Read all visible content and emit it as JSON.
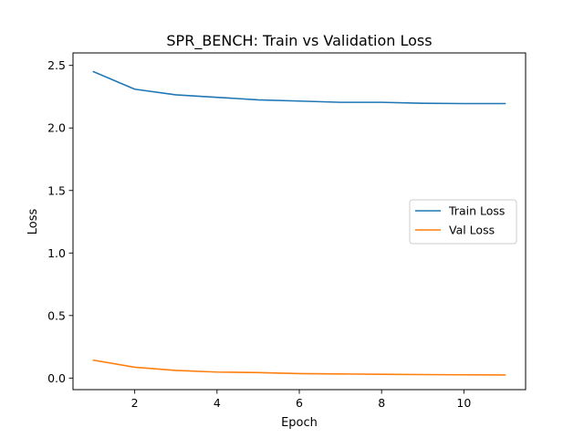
{
  "chart_data": {
    "type": "line",
    "title": "SPR_BENCH: Train vs Validation Loss",
    "xlabel": "Epoch",
    "ylabel": "Loss",
    "xlim": [
      0.5,
      11.5
    ],
    "ylim": [
      -0.0925,
      2.6
    ],
    "xticks": [
      2,
      4,
      6,
      8,
      10
    ],
    "xtick_labels": [
      "2",
      "4",
      "6",
      "8",
      "10"
    ],
    "yticks": [
      0.0,
      0.5,
      1.0,
      1.5,
      2.0,
      2.5
    ],
    "ytick_labels": [
      "0.0",
      "0.5",
      "1.0",
      "1.5",
      "2.0",
      "2.5"
    ],
    "grid": false,
    "legend_position": "center-right",
    "x": [
      1,
      2,
      3,
      4,
      5,
      6,
      7,
      8,
      9,
      10,
      11
    ],
    "series": [
      {
        "name": "Train Loss",
        "color": "#1f77b4",
        "values": [
          2.45,
          2.31,
          2.265,
          2.245,
          2.225,
          2.215,
          2.205,
          2.205,
          2.197,
          2.195,
          2.195
        ]
      },
      {
        "name": "Val Loss",
        "color": "#ff7f0e",
        "values": [
          0.143,
          0.087,
          0.061,
          0.048,
          0.044,
          0.036,
          0.033,
          0.03,
          0.028,
          0.026,
          0.025
        ]
      }
    ]
  }
}
